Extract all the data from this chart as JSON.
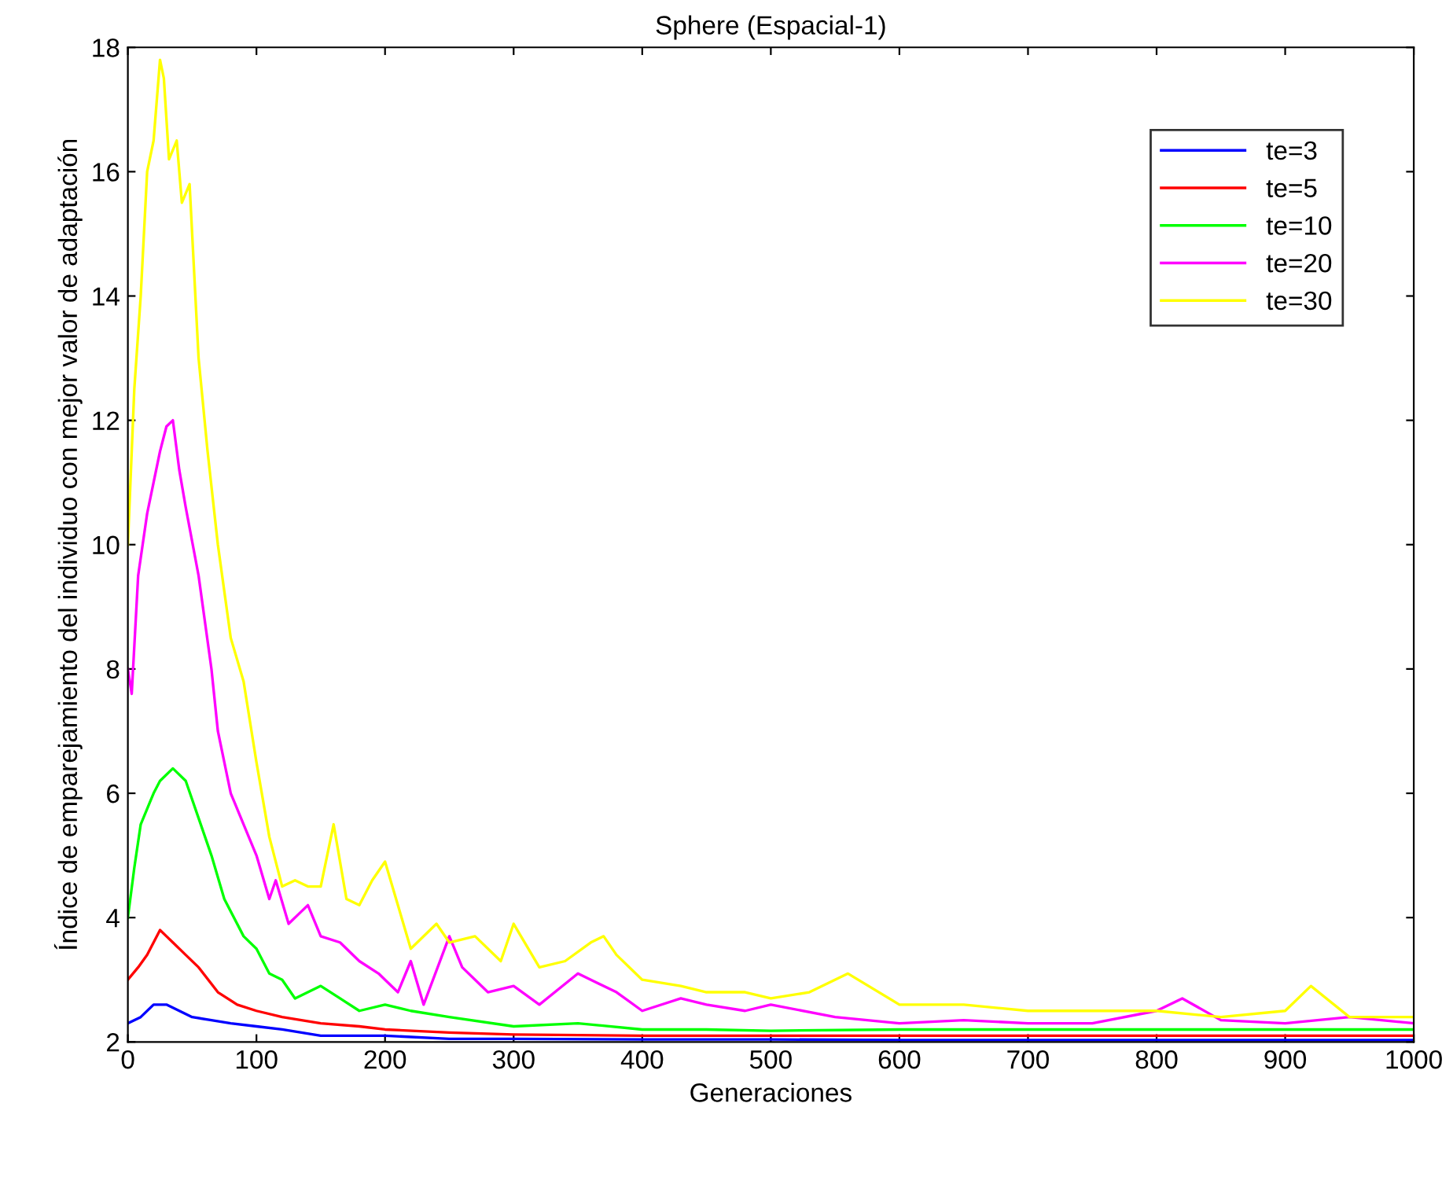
{
  "chart_data": {
    "type": "line",
    "title": "Sphere (Espacial-1)",
    "xlabel": "Generaciones",
    "ylabel": "Índice de emparejamiento del individuo con mejor valor de adaptación",
    "xlim": [
      0,
      1000
    ],
    "ylim": [
      2,
      18
    ],
    "xticks": [
      0,
      100,
      200,
      300,
      400,
      500,
      600,
      700,
      800,
      900,
      1000
    ],
    "yticks": [
      2,
      4,
      6,
      8,
      10,
      12,
      14,
      16,
      18
    ],
    "grid": false,
    "legend": "top right",
    "marker": "none",
    "line_style": "solid",
    "series": [
      {
        "name": "te=3",
        "color": "#0000ff",
        "x": [
          0,
          10,
          20,
          30,
          40,
          50,
          65,
          80,
          100,
          120,
          150,
          200,
          250,
          300,
          400,
          500,
          600,
          700,
          800,
          900,
          1000
        ],
        "values": [
          2.3,
          2.4,
          2.6,
          2.6,
          2.5,
          2.4,
          2.35,
          2.3,
          2.25,
          2.2,
          2.1,
          2.1,
          2.05,
          2.05,
          2.04,
          2.04,
          2.03,
          2.03,
          2.03,
          2.03,
          2.03
        ]
      },
      {
        "name": "te=5",
        "color": "#ff0000",
        "x": [
          0,
          8,
          15,
          25,
          30,
          35,
          45,
          55,
          70,
          85,
          100,
          120,
          150,
          180,
          200,
          250,
          300,
          400,
          500,
          600,
          700,
          800,
          900,
          1000
        ],
        "values": [
          3.0,
          3.2,
          3.4,
          3.8,
          3.7,
          3.6,
          3.4,
          3.2,
          2.8,
          2.6,
          2.5,
          2.4,
          2.3,
          2.25,
          2.2,
          2.15,
          2.12,
          2.1,
          2.1,
          2.1,
          2.1,
          2.1,
          2.1,
          2.1
        ]
      },
      {
        "name": "te=10",
        "color": "#00ff00",
        "x": [
          0,
          5,
          10,
          20,
          25,
          35,
          45,
          55,
          65,
          75,
          90,
          100,
          110,
          120,
          130,
          150,
          165,
          180,
          200,
          220,
          250,
          300,
          350,
          400,
          450,
          500,
          600,
          700,
          800,
          900,
          1000
        ],
        "values": [
          4.0,
          4.8,
          5.5,
          6.0,
          6.2,
          6.4,
          6.2,
          5.6,
          5.0,
          4.3,
          3.7,
          3.5,
          3.1,
          3.0,
          2.7,
          2.9,
          2.7,
          2.5,
          2.6,
          2.5,
          2.4,
          2.25,
          2.3,
          2.2,
          2.2,
          2.18,
          2.2,
          2.2,
          2.2,
          2.2,
          2.2
        ]
      },
      {
        "name": "te=20",
        "color": "#ff00ff",
        "x": [
          0,
          3,
          8,
          15,
          20,
          25,
          30,
          35,
          40,
          45,
          55,
          65,
          70,
          80,
          90,
          100,
          110,
          115,
          125,
          140,
          150,
          165,
          180,
          195,
          200,
          210,
          220,
          230,
          250,
          260,
          280,
          300,
          320,
          350,
          380,
          400,
          430,
          450,
          480,
          500,
          550,
          600,
          650,
          700,
          750,
          800,
          820,
          850,
          900,
          950,
          1000
        ],
        "values": [
          8.0,
          7.6,
          9.5,
          10.5,
          11.0,
          11.5,
          11.9,
          12.0,
          11.2,
          10.6,
          9.5,
          8.0,
          7.0,
          6.0,
          5.5,
          5.0,
          4.3,
          4.6,
          3.9,
          4.2,
          3.7,
          3.6,
          3.3,
          3.1,
          3.0,
          2.8,
          3.3,
          2.6,
          3.7,
          3.2,
          2.8,
          2.9,
          2.6,
          3.1,
          2.8,
          2.5,
          2.7,
          2.6,
          2.5,
          2.6,
          2.4,
          2.3,
          2.35,
          2.3,
          2.3,
          2.5,
          2.7,
          2.35,
          2.3,
          2.4,
          2.3
        ]
      },
      {
        "name": "te=30",
        "color": "#ffff00",
        "x": [
          0,
          5,
          10,
          15,
          20,
          25,
          28,
          32,
          38,
          42,
          48,
          55,
          62,
          70,
          80,
          90,
          100,
          110,
          120,
          130,
          140,
          150,
          160,
          170,
          180,
          190,
          200,
          210,
          220,
          240,
          250,
          270,
          290,
          300,
          320,
          340,
          360,
          370,
          380,
          400,
          430,
          450,
          480,
          500,
          530,
          560,
          600,
          650,
          700,
          750,
          800,
          850,
          900,
          920,
          950,
          1000
        ],
        "values": [
          10.0,
          12.5,
          14.0,
          16.0,
          16.5,
          17.8,
          17.5,
          16.2,
          16.5,
          15.5,
          15.8,
          13.0,
          11.5,
          10.0,
          8.5,
          7.8,
          6.5,
          5.3,
          4.5,
          4.6,
          4.5,
          4.5,
          5.5,
          4.3,
          4.2,
          4.6,
          4.9,
          4.2,
          3.5,
          3.9,
          3.6,
          3.7,
          3.3,
          3.9,
          3.2,
          3.3,
          3.6,
          3.7,
          3.4,
          3.0,
          2.9,
          2.8,
          2.8,
          2.7,
          2.8,
          3.1,
          2.6,
          2.6,
          2.5,
          2.5,
          2.5,
          2.4,
          2.5,
          2.9,
          2.4,
          2.4
        ]
      }
    ]
  }
}
